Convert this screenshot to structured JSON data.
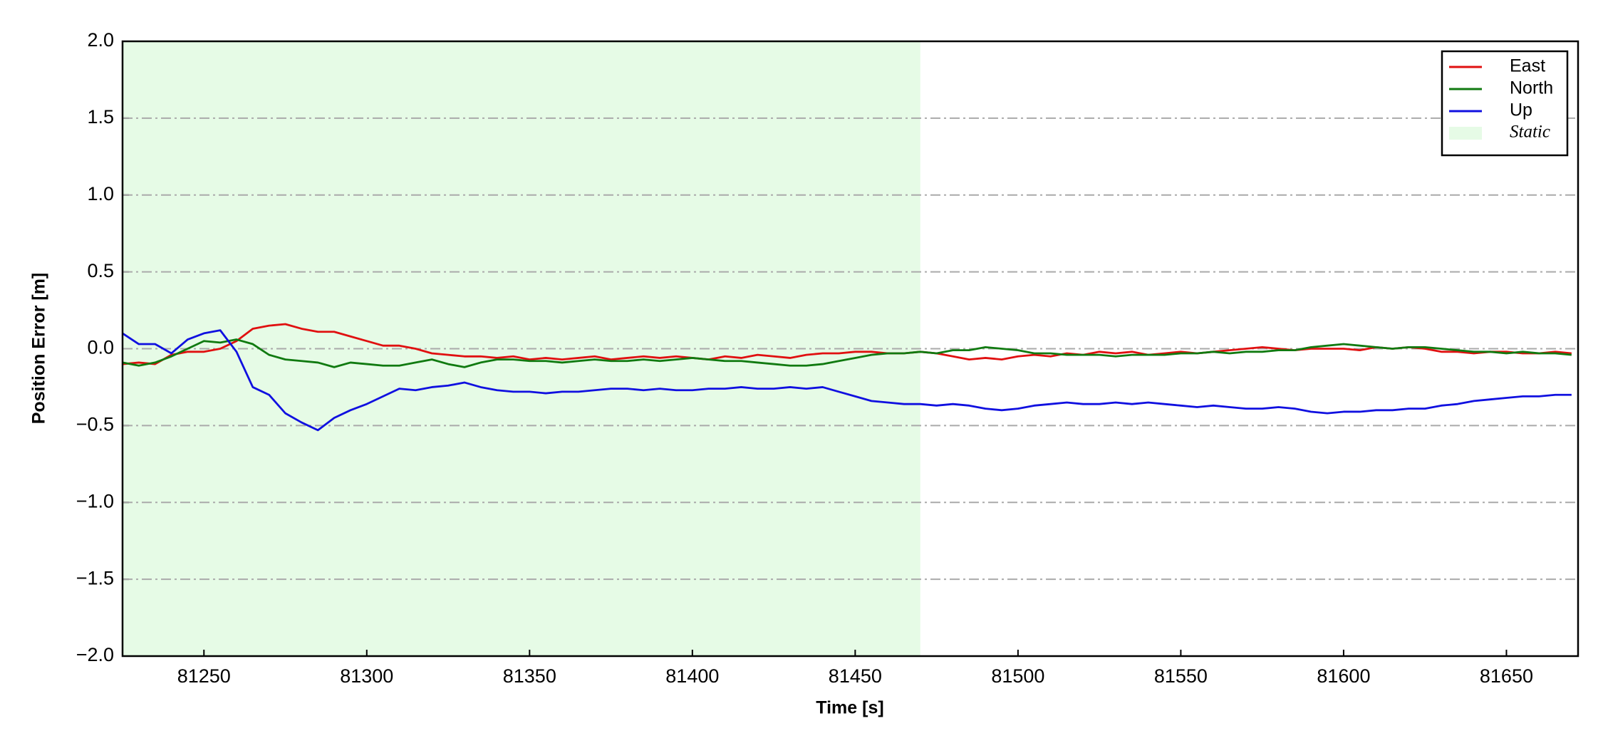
{
  "chart_data": {
    "type": "line",
    "xlabel": "Time [s]",
    "ylabel": "Position Error [m]",
    "xlim": [
      81225,
      81672
    ],
    "ylim": [
      -2,
      2
    ],
    "xticks": [
      81250,
      81300,
      81350,
      81400,
      81450,
      81500,
      81550,
      81600,
      81650
    ],
    "yticks": [
      {
        "value": -2,
        "label": "−2.0"
      },
      {
        "value": -1.5,
        "label": "−1.5"
      },
      {
        "value": -1,
        "label": "−1.0"
      },
      {
        "value": -0.5,
        "label": "−0.5"
      },
      {
        "value": 0,
        "label": "0.0"
      },
      {
        "value": 0.5,
        "label": "0.5"
      },
      {
        "value": 1,
        "label": "1.0"
      },
      {
        "value": 1.5,
        "label": "1.5"
      },
      {
        "value": 2,
        "label": "2.0"
      }
    ],
    "grid": true,
    "legend": "upper right",
    "shaded_region": {
      "label": "Static",
      "x": [
        81225,
        81470
      ],
      "color": "#e6fbe6"
    },
    "x": [
      81225,
      81230,
      81235,
      81240,
      81245,
      81250,
      81255,
      81260,
      81265,
      81270,
      81275,
      81280,
      81285,
      81290,
      81295,
      81300,
      81305,
      81310,
      81315,
      81320,
      81325,
      81330,
      81335,
      81340,
      81345,
      81350,
      81355,
      81360,
      81365,
      81370,
      81375,
      81380,
      81385,
      81390,
      81395,
      81400,
      81405,
      81410,
      81415,
      81420,
      81425,
      81430,
      81435,
      81440,
      81445,
      81450,
      81455,
      81460,
      81465,
      81470,
      81475,
      81480,
      81485,
      81490,
      81495,
      81500,
      81505,
      81510,
      81515,
      81520,
      81525,
      81530,
      81535,
      81540,
      81545,
      81550,
      81555,
      81560,
      81565,
      81570,
      81575,
      81580,
      81585,
      81590,
      81595,
      81600,
      81605,
      81610,
      81615,
      81620,
      81625,
      81630,
      81635,
      81640,
      81645,
      81650,
      81655,
      81660,
      81665,
      81670
    ],
    "series": [
      {
        "name": "East",
        "color": "#e01010",
        "values": [
          -0.1,
          -0.09,
          -0.1,
          -0.04,
          -0.02,
          -0.02,
          0.0,
          0.05,
          0.13,
          0.15,
          0.16,
          0.13,
          0.11,
          0.11,
          0.08,
          0.05,
          0.02,
          0.02,
          0.0,
          -0.03,
          -0.04,
          -0.05,
          -0.05,
          -0.06,
          -0.05,
          -0.07,
          -0.06,
          -0.07,
          -0.06,
          -0.05,
          -0.07,
          -0.06,
          -0.05,
          -0.06,
          -0.05,
          -0.06,
          -0.07,
          -0.05,
          -0.06,
          -0.04,
          -0.05,
          -0.06,
          -0.04,
          -0.03,
          -0.03,
          -0.02,
          -0.02,
          -0.03,
          -0.03,
          -0.02,
          -0.03,
          -0.05,
          -0.07,
          -0.06,
          -0.07,
          -0.05,
          -0.04,
          -0.05,
          -0.03,
          -0.04,
          -0.02,
          -0.03,
          -0.02,
          -0.04,
          -0.03,
          -0.02,
          -0.03,
          -0.02,
          -0.01,
          0.0,
          0.01,
          0.0,
          -0.01,
          0.0,
          0.0,
          0.0,
          -0.01,
          0.01,
          0.0,
          0.01,
          0.0,
          -0.02,
          -0.02,
          -0.03,
          -0.02,
          -0.02,
          -0.03,
          -0.03,
          -0.02,
          -0.03
        ]
      },
      {
        "name": "North",
        "color": "#107a10",
        "values": [
          -0.09,
          -0.11,
          -0.09,
          -0.05,
          0.0,
          0.05,
          0.04,
          0.06,
          0.03,
          -0.04,
          -0.07,
          -0.08,
          -0.09,
          -0.12,
          -0.09,
          -0.1,
          -0.11,
          -0.11,
          -0.09,
          -0.07,
          -0.1,
          -0.12,
          -0.09,
          -0.07,
          -0.07,
          -0.08,
          -0.08,
          -0.09,
          -0.08,
          -0.07,
          -0.08,
          -0.08,
          -0.07,
          -0.08,
          -0.07,
          -0.06,
          -0.07,
          -0.08,
          -0.08,
          -0.09,
          -0.1,
          -0.11,
          -0.11,
          -0.1,
          -0.08,
          -0.06,
          -0.04,
          -0.03,
          -0.03,
          -0.02,
          -0.03,
          -0.01,
          -0.01,
          0.01,
          0.0,
          -0.01,
          -0.03,
          -0.03,
          -0.04,
          -0.04,
          -0.04,
          -0.05,
          -0.04,
          -0.04,
          -0.04,
          -0.03,
          -0.03,
          -0.02,
          -0.03,
          -0.02,
          -0.02,
          -0.01,
          -0.01,
          0.01,
          0.02,
          0.03,
          0.02,
          0.01,
          0.0,
          0.01,
          0.01,
          0.0,
          -0.01,
          -0.02,
          -0.02,
          -0.03,
          -0.02,
          -0.03,
          -0.03,
          -0.04
        ]
      },
      {
        "name": "Up",
        "color": "#1010e0",
        "values": [
          0.1,
          0.03,
          0.03,
          -0.03,
          0.06,
          0.1,
          0.12,
          -0.02,
          -0.25,
          -0.3,
          -0.42,
          -0.48,
          -0.53,
          -0.45,
          -0.4,
          -0.36,
          -0.31,
          -0.26,
          -0.27,
          -0.25,
          -0.24,
          -0.22,
          -0.25,
          -0.27,
          -0.28,
          -0.28,
          -0.29,
          -0.28,
          -0.28,
          -0.27,
          -0.26,
          -0.26,
          -0.27,
          -0.26,
          -0.27,
          -0.27,
          -0.26,
          -0.26,
          -0.25,
          -0.26,
          -0.26,
          -0.25,
          -0.26,
          -0.25,
          -0.28,
          -0.31,
          -0.34,
          -0.35,
          -0.36,
          -0.36,
          -0.37,
          -0.36,
          -0.37,
          -0.39,
          -0.4,
          -0.39,
          -0.37,
          -0.36,
          -0.35,
          -0.36,
          -0.36,
          -0.35,
          -0.36,
          -0.35,
          -0.36,
          -0.37,
          -0.38,
          -0.37,
          -0.38,
          -0.39,
          -0.39,
          -0.38,
          -0.39,
          -0.41,
          -0.42,
          -0.41,
          -0.41,
          -0.4,
          -0.4,
          -0.39,
          -0.39,
          -0.37,
          -0.36,
          -0.34,
          -0.33,
          -0.32,
          -0.31,
          -0.31,
          -0.3,
          -0.3
        ]
      }
    ]
  }
}
